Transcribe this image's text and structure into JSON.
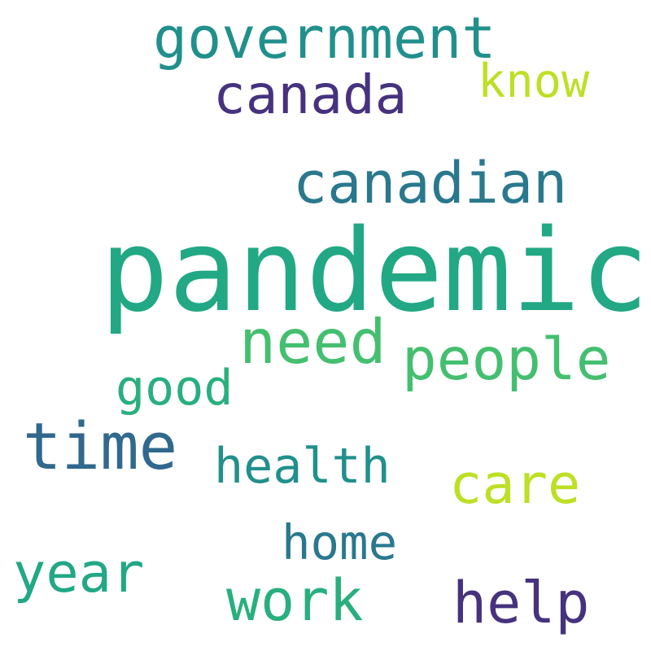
{
  "cloud": {
    "background": "#ffffff",
    "words": [
      {
        "text": "government",
        "color": "#21908c"
      },
      {
        "text": "canada",
        "color": "#46327e"
      },
      {
        "text": "know",
        "color": "#bddf26"
      },
      {
        "text": "canadian",
        "color": "#2a788e"
      },
      {
        "text": "pandemic",
        "color": "#22a884"
      },
      {
        "text": "need",
        "color": "#44bf70"
      },
      {
        "text": "people",
        "color": "#44bf70"
      },
      {
        "text": "good",
        "color": "#29af7f"
      },
      {
        "text": "time",
        "color": "#31688e"
      },
      {
        "text": "health",
        "color": "#21908c"
      },
      {
        "text": "care",
        "color": "#bddf26"
      },
      {
        "text": "home",
        "color": "#2a788e"
      },
      {
        "text": "year",
        "color": "#22a884"
      },
      {
        "text": "work",
        "color": "#29af7f"
      },
      {
        "text": "help",
        "color": "#46327e"
      }
    ]
  }
}
